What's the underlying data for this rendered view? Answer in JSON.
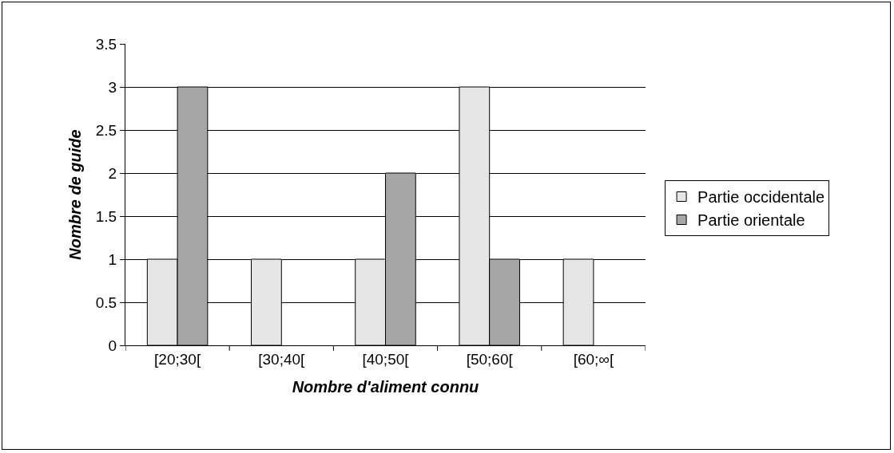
{
  "chart_data": {
    "type": "bar",
    "xlabel": "Nombre d'aliment connu",
    "ylabel": "Nombre de guide",
    "categories": [
      "[20;30[",
      "[30;40[",
      "[40;50[",
      "[50;60[",
      "[60;∞["
    ],
    "series": [
      {
        "name": "Partie occidentale",
        "color": "#e6e6e6",
        "values": [
          1,
          1,
          1,
          3,
          1
        ]
      },
      {
        "name": "Partie orientale",
        "color": "#a6a6a6",
        "values": [
          3,
          null,
          2,
          1,
          null
        ]
      }
    ],
    "ylim": [
      0,
      3.5
    ],
    "yticks": [
      0,
      0.5,
      1,
      1.5,
      2,
      2.5,
      3,
      3.5
    ],
    "grid": "y",
    "legend": "right"
  }
}
